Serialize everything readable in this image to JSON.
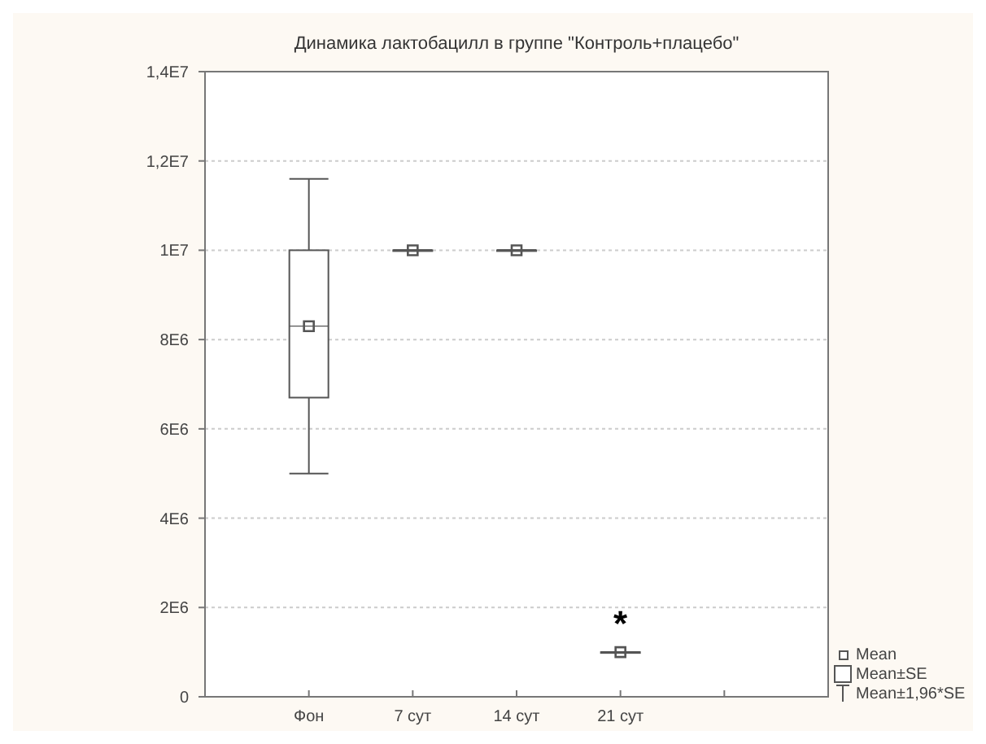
{
  "chart_data": {
    "type": "box",
    "title": "Динамика лактобацилл в группе \"Контроль+плацебо\"",
    "categories": [
      "Фон",
      "7 сут",
      "14 сут",
      "21 сут",
      null
    ],
    "boxes": [
      {
        "low": 5000000.0,
        "q1": 6700000.0,
        "median": 8300000.0,
        "q3": 10000000.0,
        "high": 11600000.0,
        "mean": 8300000.0
      },
      {
        "low": 10000000.0,
        "q1": 10000000.0,
        "median": 10000000.0,
        "q3": 10000000.0,
        "high": 10000000.0,
        "mean": 10000000.0
      },
      {
        "low": 10000000.0,
        "q1": 10000000.0,
        "median": 10000000.0,
        "q3": 10000000.0,
        "high": 10000000.0,
        "mean": 10000000.0
      },
      {
        "low": 1000000.0,
        "q1": 1000000.0,
        "median": 1000000.0,
        "q3": 1000000.0,
        "high": 1000000.0,
        "mean": 1000000.0
      },
      null
    ],
    "color": "#555555",
    "ylim": [
      0,
      14000000.0
    ],
    "yticks": [
      {
        "value": 0,
        "label": "0"
      },
      {
        "value": 2000000.0,
        "label": "2E6"
      },
      {
        "value": 4000000.0,
        "label": "4E6"
      },
      {
        "value": 6000000.0,
        "label": "6E6"
      },
      {
        "value": 8000000.0,
        "label": "8E6"
      },
      {
        "value": 10000000.0,
        "label": "1E7"
      },
      {
        "value": 12000000.0,
        "label": "1,2E7"
      },
      {
        "value": 14000000.0,
        "label": "1,4E7"
      }
    ],
    "grid": "y",
    "annotations": [
      "*",
      "Mean",
      "Mean±SE",
      "Mean±1,96*SE"
    ]
  }
}
